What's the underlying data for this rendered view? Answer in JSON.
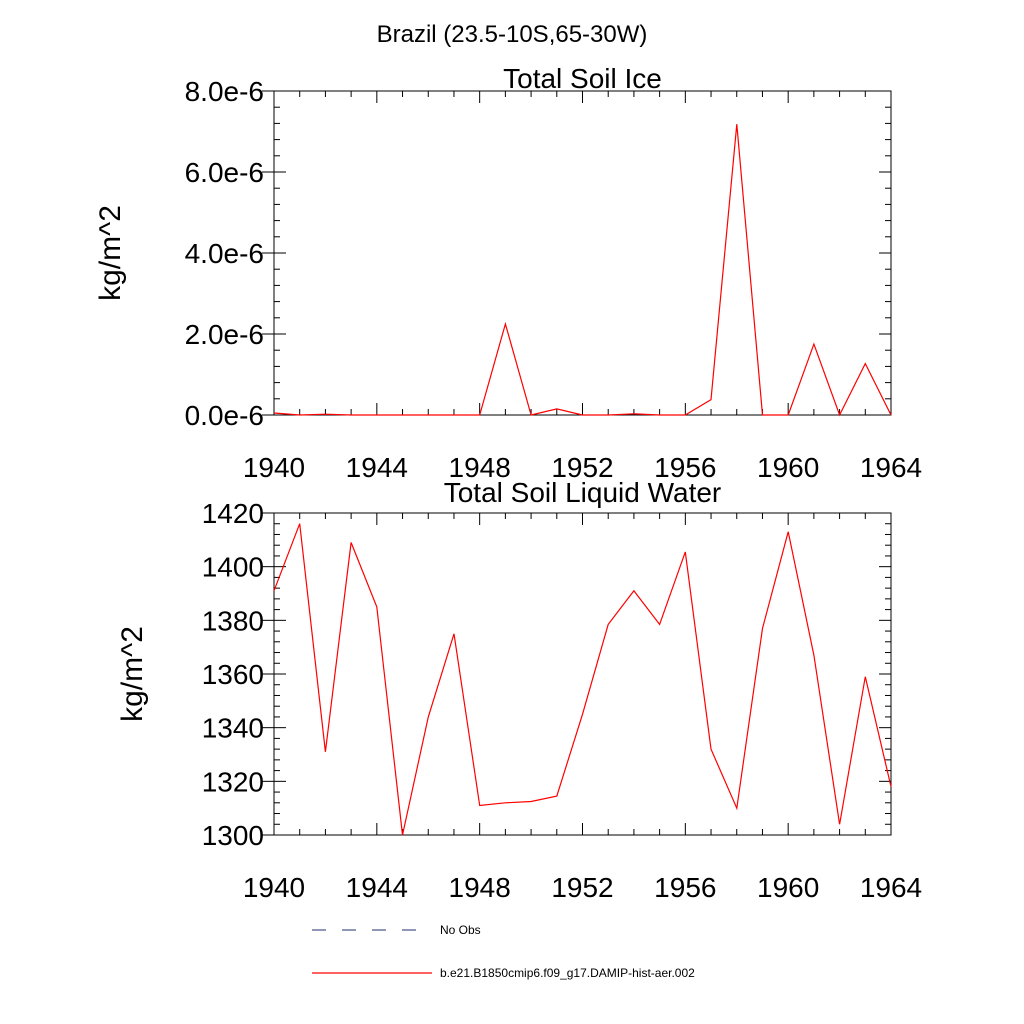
{
  "suptitle": "Brazil (23.5-10S,65-30W)",
  "legend": {
    "entries": [
      {
        "label": "No Obs",
        "style": "dashed",
        "color": "#4a5a8a"
      },
      {
        "label": "b.e21.B1850cmip6.f09_g17.DAMIP-hist-aer.002",
        "style": "solid",
        "color": "#ff0000"
      }
    ]
  },
  "chart_data": [
    {
      "type": "line",
      "title": "Total Soil Ice",
      "ylabel": "kg/m^2",
      "xlabel": "",
      "xlim": [
        1940,
        1964
      ],
      "ylim": [
        0,
        8e-06
      ],
      "xticks": [
        1940,
        1944,
        1948,
        1952,
        1956,
        1960,
        1964
      ],
      "xtick_labels": [
        "1940",
        "1944",
        "1948",
        "1952",
        "1956",
        "1960",
        "1964"
      ],
      "yticks": [
        0,
        2e-06,
        4e-06,
        6e-06,
        8e-06
      ],
      "ytick_labels": [
        "0.0e-6",
        "2.0e-6",
        "4.0e-6",
        "6.0e-6",
        "8.0e-6"
      ],
      "series": [
        {
          "name": "b.e21.B1850cmip6.f09_g17.DAMIP-hist-aer.002",
          "color": "#ff0000",
          "x": [
            1940,
            1941,
            1942,
            1943,
            1944,
            1945,
            1946,
            1947,
            1948,
            1949,
            1950,
            1951,
            1952,
            1953,
            1954,
            1955,
            1956,
            1957,
            1958,
            1959,
            1960,
            1961,
            1962,
            1963,
            1964
          ],
          "y": [
            5e-08,
            0.0,
            2e-08,
            0.0,
            0.0,
            0.0,
            0.0,
            0.0,
            0.0,
            2.25e-06,
            0.0,
            1.5e-07,
            0.0,
            0.0,
            3e-08,
            0.0,
            0.0,
            3.8e-07,
            7.18e-06,
            0.0,
            0.0,
            1.75e-06,
            0.0,
            1.27e-06,
            0.0
          ]
        }
      ]
    },
    {
      "type": "line",
      "title": "Total Soil Liquid Water",
      "ylabel": "kg/m^2",
      "xlabel": "",
      "xlim": [
        1940,
        1964
      ],
      "ylim": [
        1300,
        1420
      ],
      "xticks": [
        1940,
        1944,
        1948,
        1952,
        1956,
        1960,
        1964
      ],
      "xtick_labels": [
        "1940",
        "1944",
        "1948",
        "1952",
        "1956",
        "1960",
        "1964"
      ],
      "yticks": [
        1300,
        1320,
        1340,
        1360,
        1380,
        1400,
        1420
      ],
      "ytick_labels": [
        "1300",
        "1320",
        "1340",
        "1360",
        "1380",
        "1400",
        "1420"
      ],
      "series": [
        {
          "name": "b.e21.B1850cmip6.f09_g17.DAMIP-hist-aer.002",
          "color": "#ff0000",
          "x": [
            1940,
            1941,
            1942,
            1943,
            1944,
            1945,
            1946,
            1947,
            1948,
            1949,
            1950,
            1951,
            1952,
            1953,
            1954,
            1955,
            1956,
            1957,
            1958,
            1959,
            1960,
            1961,
            1962,
            1963,
            1964
          ],
          "y": [
            1391,
            1416,
            1331,
            1409,
            1385,
            1300,
            1344,
            1375,
            1311,
            1312,
            1312.5,
            1314.5,
            1345,
            1378.5,
            1391,
            1378.5,
            1405.5,
            1332,
            1310,
            1377,
            1413,
            1367,
            1304,
            1359,
            1318
          ]
        }
      ]
    }
  ]
}
